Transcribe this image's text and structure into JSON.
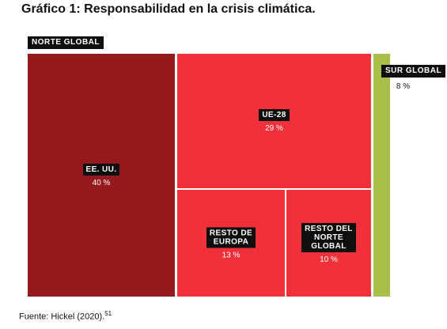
{
  "title": "Gráfico 1: Responsabilidad en la crisis climática.",
  "groups": {
    "north": "NORTE GLOBAL",
    "south": "SUR GLOBAL"
  },
  "source": {
    "text": "Fuente: Hickel (2020).",
    "note": "51"
  },
  "colors": {
    "usa": "#941a1d",
    "north_other": "#f0303a",
    "south": "#a8c04a",
    "label_bg": "#0f0f0f"
  },
  "chart_data": {
    "type": "treemap",
    "title": "Gráfico 1: Responsabilidad en la crisis climática.",
    "groups": [
      {
        "name": "NORTE GLOBAL",
        "items": [
          {
            "label": "EE. UU.",
            "value": 40,
            "display": "40 %"
          },
          {
            "label": "UE-28",
            "value": 29,
            "display": "29 %"
          },
          {
            "label": "RESTO DE\nEUROPA",
            "value": 13,
            "display": "13 %"
          },
          {
            "label": "RESTO DEL\nNORTE\nGLOBAL",
            "value": 10,
            "display": "10 %"
          }
        ]
      },
      {
        "name": "SUR GLOBAL",
        "items": [
          {
            "label": "SUR GLOBAL",
            "value": 8,
            "display": "8 %"
          }
        ]
      }
    ],
    "unit": "%"
  }
}
